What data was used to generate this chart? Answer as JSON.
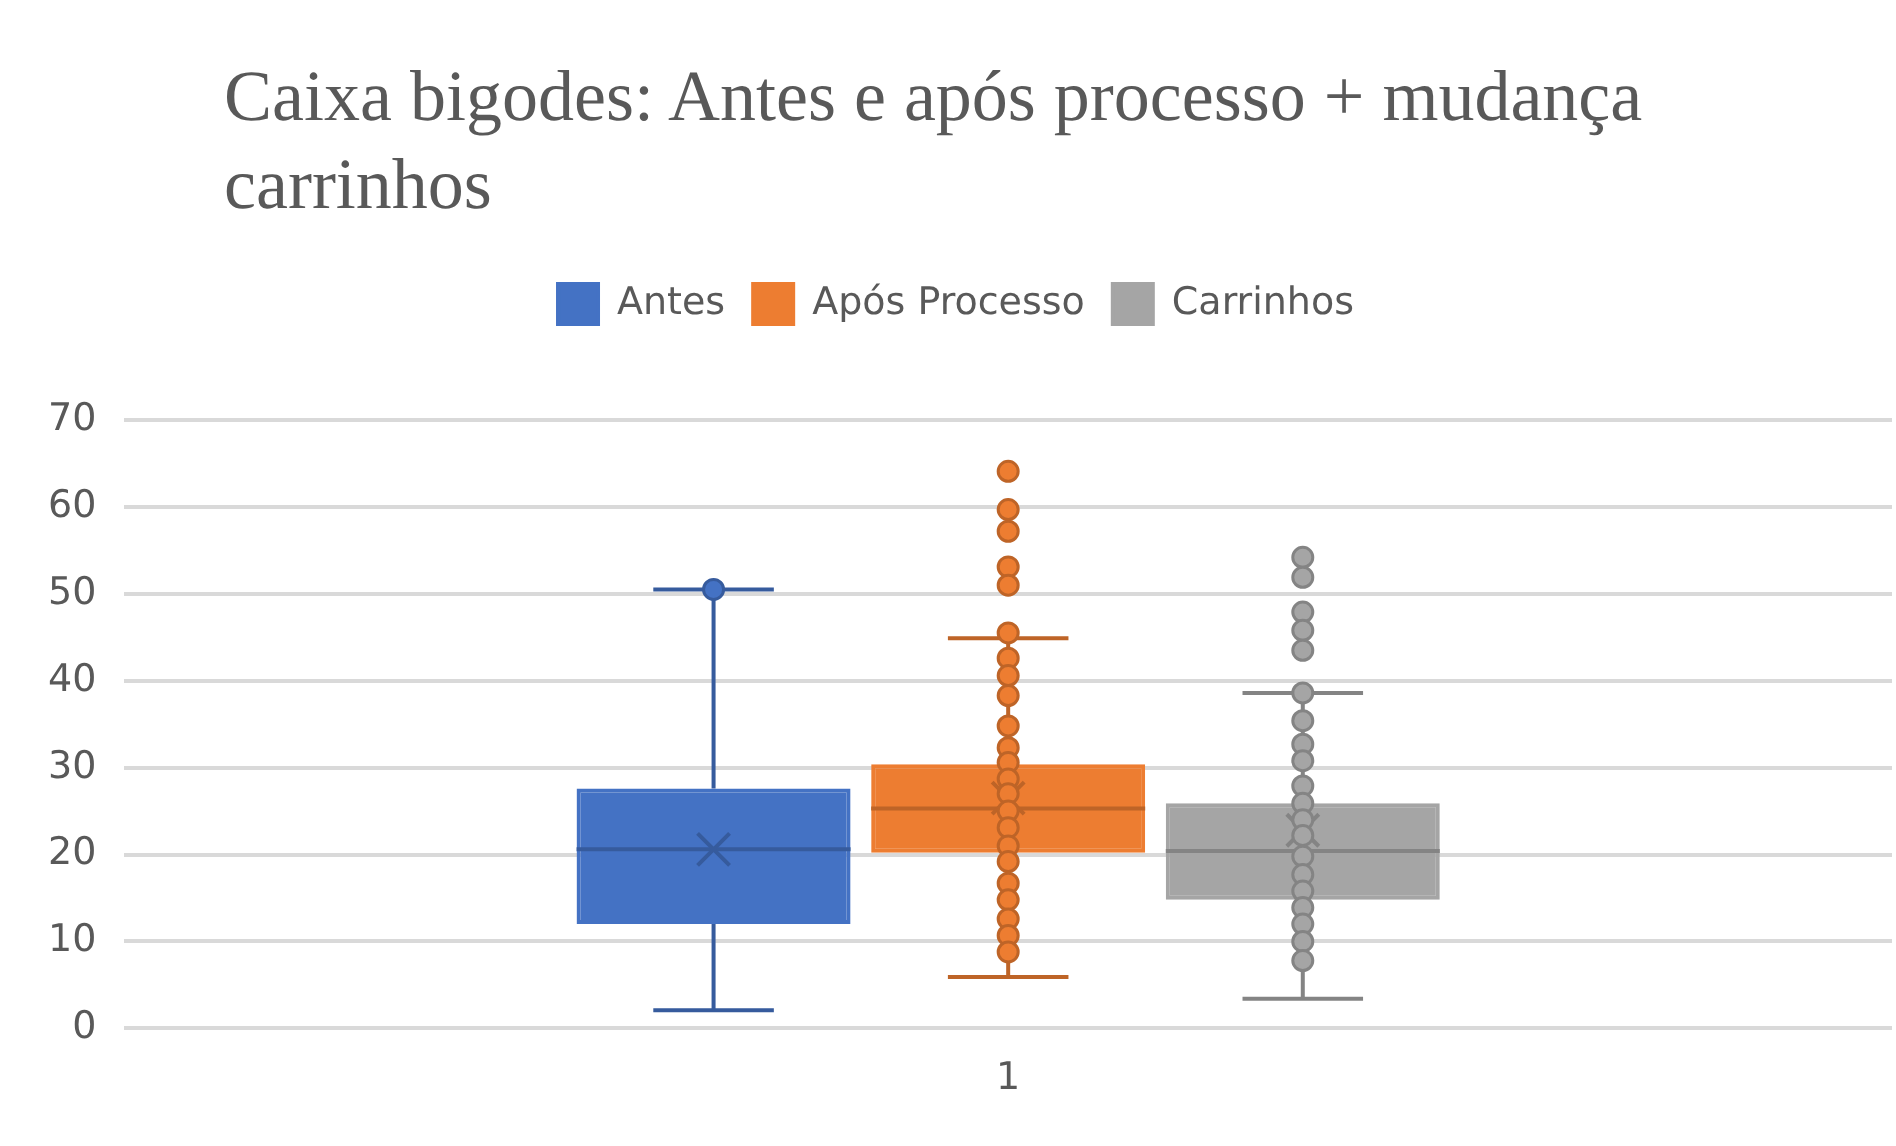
{
  "chart_data": {
    "type": "box",
    "title": "Caixa bigodes: Antes e após processo + mudança carrinhos",
    "categories": [
      "1"
    ],
    "ylim": [
      0,
      70
    ],
    "yticks": [
      0,
      10,
      20,
      30,
      40,
      50,
      60,
      70
    ],
    "grid": "y",
    "legend": "top",
    "marker": "circle",
    "series": [
      {
        "name": "Antes",
        "color": "#4472c4",
        "boxes": [
          {
            "low": 2.1,
            "q1": 12,
            "median": 20.6,
            "q3": 27.6,
            "high": 50.5,
            "mean": 20.6,
            "outliers": [
              50.5
            ]
          }
        ]
      },
      {
        "name": "Após Processo",
        "color": "#ed7d31",
        "boxes": [
          {
            "low": 5.9,
            "q1": 20.2,
            "median": 25.3,
            "q3": 30.4,
            "high": 44.9,
            "mean": 26.5,
            "outliers": [
              64.1,
              59.7,
              57.2,
              53.1,
              51,
              45.5,
              42.6,
              40.6,
              38.3,
              34.8,
              32.3,
              30.6,
              28.7,
              27,
              25,
              23.1,
              21,
              19.2,
              16.7,
              14.8,
              12.6,
              10.7,
              8.8
            ]
          }
        ]
      },
      {
        "name": "Carrinhos",
        "color": "#a5a5a5",
        "boxes": [
          {
            "low": 3.4,
            "q1": 14.8,
            "median": 20.4,
            "q3": 25.9,
            "high": 38.6,
            "mean": 22.8,
            "outliers": [
              54.2,
              51.9,
              47.9,
              45.8,
              43.5,
              38.6,
              35.4,
              32.7,
              30.8,
              27.9,
              25.9,
              24,
              22.2,
              19.8,
              17.7,
              15.8,
              13.9,
              12,
              10,
              7.8
            ]
          }
        ]
      }
    ]
  }
}
